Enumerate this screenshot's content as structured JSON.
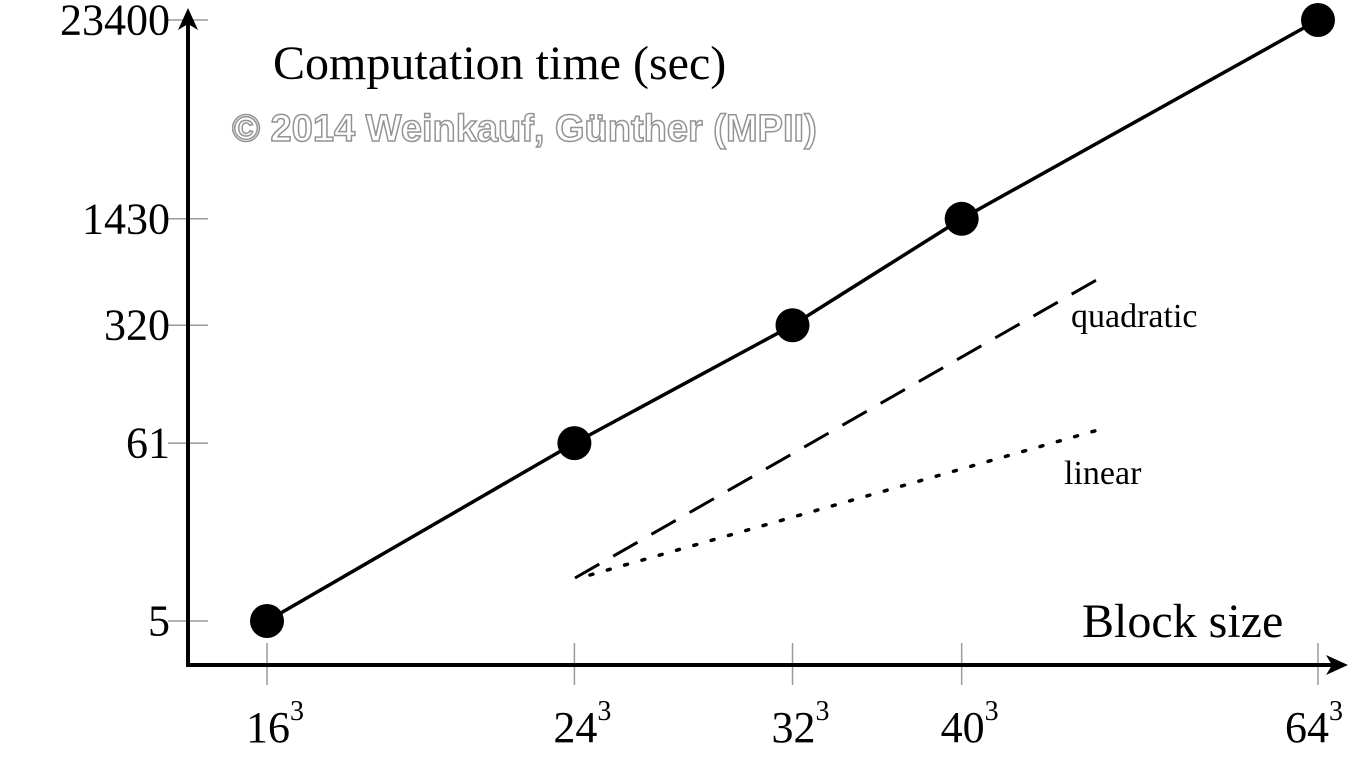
{
  "chart_data": {
    "type": "line",
    "title": "",
    "ylabel": "Computation time (sec)",
    "xlabel": "Block size",
    "x_scale": "log",
    "y_scale": "log",
    "categories": [
      "16",
      "24",
      "32",
      "40",
      "64"
    ],
    "x_exponent": "3",
    "x": [
      4096,
      13824,
      32768,
      64000,
      262144
    ],
    "y_tick_labels": [
      "5",
      "61",
      "320",
      "1430",
      "23400"
    ],
    "series": [
      {
        "name": "Computation time",
        "style": "solid with markers",
        "values": [
          5,
          61,
          320,
          1430,
          23400
        ]
      },
      {
        "name": "quadratic",
        "style": "dashed",
        "label": "quadratic"
      },
      {
        "name": "linear",
        "style": "dotted",
        "label": "linear"
      }
    ],
    "grid": false,
    "color": "#000000",
    "watermark": "© 2014 Weinkauf, Günther (MPII)"
  }
}
